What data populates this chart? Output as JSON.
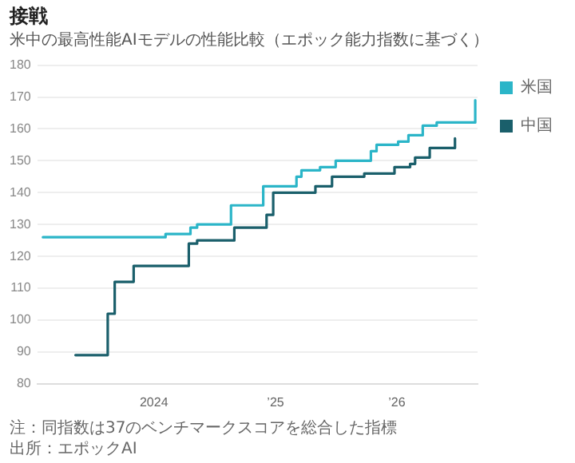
{
  "chart_data": {
    "type": "step",
    "title": "接戦",
    "subtitle": "米中の最高性能AIモデルの性能比較（エポック能力指数に基づく）",
    "annotations": [
      "注：同指数は37のベンチマークスコアを総合した指標",
      "出所：エポックAI"
    ],
    "series": [
      {
        "name": "米国",
        "color": "#2bb5c8",
        "x": [
          "2023-02-01",
          "2024-02-05",
          "2024-04-20",
          "2024-05-10",
          "2024-08-20",
          "2024-11-25",
          "2025-03-05",
          "2025-03-20",
          "2025-05-15",
          "2025-07-01",
          "2025-10-15",
          "2025-11-01",
          "2026-01-05",
          "2026-02-05",
          "2026-03-20",
          "2026-05-01",
          "2026-08-25"
        ],
        "values": [
          126,
          127,
          129,
          130,
          136,
          142,
          145,
          147,
          148,
          150,
          153,
          155,
          156,
          158,
          161,
          162,
          169
        ]
      },
      {
        "name": "中国",
        "color": "#1a5f6b",
        "x": [
          "2023-05-10",
          "2023-08-15",
          "2023-09-05",
          "2023-11-01",
          "2024-04-15",
          "2024-05-10",
          "2024-08-30",
          "2024-12-05",
          "2024-12-25",
          "2025-05-01",
          "2025-06-20",
          "2025-09-25",
          "2025-12-25",
          "2026-02-10",
          "2026-02-25",
          "2026-04-10",
          "2026-06-25"
        ],
        "values": [
          89,
          102,
          112,
          117,
          124,
          125,
          129,
          133,
          140,
          142,
          145,
          146,
          148,
          149,
          151,
          154,
          157
        ]
      }
    ],
    "xlim": [
      "2023-01-15",
      "2026-09-01"
    ],
    "xticks": [
      {
        "value": "2024-01-01",
        "label": "2024"
      },
      {
        "value": "2025-01-01",
        "label": "’25"
      },
      {
        "value": "2026-01-01",
        "label": "’26"
      }
    ],
    "ylim": [
      80,
      180
    ],
    "yticks": [
      80,
      90,
      100,
      110,
      120,
      130,
      140,
      150,
      160,
      170,
      180
    ],
    "grid": "y",
    "legend": "right",
    "marker": "none",
    "line_style": "solid"
  }
}
